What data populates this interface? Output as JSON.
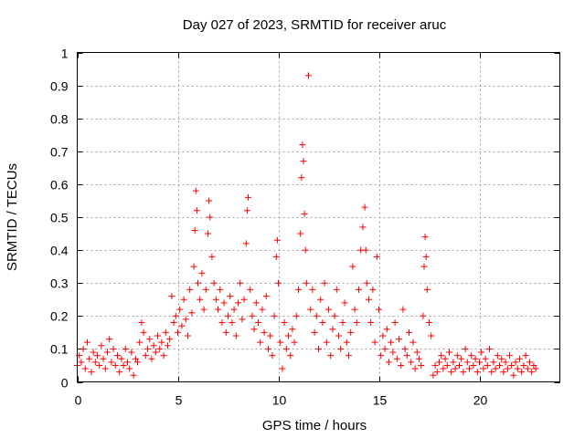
{
  "chart_data": {
    "type": "scatter",
    "title": "Day 027 of 2023, SRMTID for receiver aruc",
    "xlabel": "GPS time / hours",
    "ylabel": "SRMTID / TECUs",
    "xlim": [
      0,
      24
    ],
    "ylim": [
      0,
      1
    ],
    "xticks": [
      0,
      5,
      10,
      15,
      20
    ],
    "xtick_labels": [
      "0",
      "5",
      "10",
      "15",
      "20"
    ],
    "yticks": [
      0,
      0.1,
      0.2,
      0.3,
      0.4,
      0.5,
      0.6,
      0.7,
      0.8,
      0.9,
      1
    ],
    "ytick_labels": [
      "0",
      "0.1",
      "0.2",
      "0.3",
      "0.4",
      "0.5",
      "0.6",
      "0.7",
      "0.8",
      "0.9",
      "1"
    ],
    "grid": true,
    "marker": "+",
    "color": "#ff0000",
    "series": [
      {
        "name": "SRMTID",
        "points": [
          [
            0.0,
            0.05
          ],
          [
            0.1,
            0.08
          ],
          [
            0.2,
            0.06
          ],
          [
            0.3,
            0.1
          ],
          [
            0.4,
            0.04
          ],
          [
            0.5,
            0.12
          ],
          [
            0.6,
            0.07
          ],
          [
            0.7,
            0.03
          ],
          [
            0.8,
            0.09
          ],
          [
            0.9,
            0.06
          ],
          [
            1.0,
            0.08
          ],
          [
            1.1,
            0.05
          ],
          [
            1.2,
            0.11
          ],
          [
            1.3,
            0.07
          ],
          [
            1.4,
            0.04
          ],
          [
            1.5,
            0.09
          ],
          [
            1.6,
            0.13
          ],
          [
            1.7,
            0.06
          ],
          [
            1.8,
            0.1
          ],
          [
            1.9,
            0.05
          ],
          [
            2.0,
            0.08
          ],
          [
            2.1,
            0.03
          ],
          [
            2.2,
            0.07
          ],
          [
            2.3,
            0.05
          ],
          [
            2.4,
            0.1
          ],
          [
            2.5,
            0.06
          ],
          [
            2.6,
            0.04
          ],
          [
            2.7,
            0.09
          ],
          [
            2.8,
            0.02
          ],
          [
            2.9,
            0.07
          ],
          [
            3.0,
            0.06
          ],
          [
            3.1,
            0.12
          ],
          [
            3.2,
            0.18
          ],
          [
            3.3,
            0.15
          ],
          [
            3.4,
            0.08
          ],
          [
            3.5,
            0.1
          ],
          [
            3.6,
            0.13
          ],
          [
            3.7,
            0.07
          ],
          [
            3.8,
            0.11
          ],
          [
            3.9,
            0.09
          ],
          [
            4.0,
            0.14
          ],
          [
            4.1,
            0.1
          ],
          [
            4.2,
            0.12
          ],
          [
            4.3,
            0.08
          ],
          [
            4.4,
            0.15
          ],
          [
            4.5,
            0.11
          ],
          [
            4.6,
            0.13
          ],
          [
            4.7,
            0.26
          ],
          [
            4.8,
            0.18
          ],
          [
            4.9,
            0.2
          ],
          [
            5.0,
            0.15
          ],
          [
            5.1,
            0.22
          ],
          [
            5.2,
            0.17
          ],
          [
            5.3,
            0.25
          ],
          [
            5.4,
            0.19
          ],
          [
            5.5,
            0.14
          ],
          [
            5.6,
            0.28
          ],
          [
            5.7,
            0.21
          ],
          [
            5.8,
            0.35
          ],
          [
            5.85,
            0.46
          ],
          [
            5.9,
            0.58
          ],
          [
            5.95,
            0.52
          ],
          [
            6.0,
            0.3
          ],
          [
            6.1,
            0.25
          ],
          [
            6.2,
            0.33
          ],
          [
            6.3,
            0.22
          ],
          [
            6.4,
            0.28
          ],
          [
            6.5,
            0.45
          ],
          [
            6.55,
            0.55
          ],
          [
            6.6,
            0.5
          ],
          [
            6.7,
            0.38
          ],
          [
            6.8,
            0.3
          ],
          [
            6.9,
            0.25
          ],
          [
            7.0,
            0.22
          ],
          [
            7.1,
            0.28
          ],
          [
            7.2,
            0.18
          ],
          [
            7.3,
            0.24
          ],
          [
            7.4,
            0.15
          ],
          [
            7.5,
            0.2
          ],
          [
            7.6,
            0.26
          ],
          [
            7.7,
            0.18
          ],
          [
            7.8,
            0.22
          ],
          [
            7.9,
            0.14
          ],
          [
            8.0,
            0.24
          ],
          [
            8.1,
            0.3
          ],
          [
            8.2,
            0.19
          ],
          [
            8.3,
            0.25
          ],
          [
            8.4,
            0.42
          ],
          [
            8.45,
            0.52
          ],
          [
            8.5,
            0.56
          ],
          [
            8.6,
            0.28
          ],
          [
            8.7,
            0.2
          ],
          [
            8.8,
            0.16
          ],
          [
            8.9,
            0.24
          ],
          [
            9.0,
            0.18
          ],
          [
            9.1,
            0.12
          ],
          [
            9.2,
            0.22
          ],
          [
            9.3,
            0.15
          ],
          [
            9.4,
            0.26
          ],
          [
            9.5,
            0.1
          ],
          [
            9.6,
            0.14
          ],
          [
            9.7,
            0.08
          ],
          [
            9.8,
            0.2
          ],
          [
            9.9,
            0.38
          ],
          [
            9.95,
            0.43
          ],
          [
            10.0,
            0.3
          ],
          [
            10.1,
            0.12
          ],
          [
            10.2,
            0.04
          ],
          [
            10.3,
            0.18
          ],
          [
            10.4,
            0.1
          ],
          [
            10.5,
            0.14
          ],
          [
            10.6,
            0.08
          ],
          [
            10.7,
            0.16
          ],
          [
            10.8,
            0.12
          ],
          [
            10.9,
            0.2
          ],
          [
            11.0,
            0.28
          ],
          [
            11.1,
            0.45
          ],
          [
            11.15,
            0.62
          ],
          [
            11.2,
            0.72
          ],
          [
            11.25,
            0.67
          ],
          [
            11.3,
            0.51
          ],
          [
            11.35,
            0.4
          ],
          [
            11.4,
            0.3
          ],
          [
            11.5,
            0.93
          ],
          [
            11.6,
            0.22
          ],
          [
            11.7,
            0.28
          ],
          [
            11.8,
            0.15
          ],
          [
            11.9,
            0.2
          ],
          [
            12.0,
            0.1
          ],
          [
            12.1,
            0.25
          ],
          [
            12.2,
            0.18
          ],
          [
            12.3,
            0.3
          ],
          [
            12.4,
            0.12
          ],
          [
            12.5,
            0.22
          ],
          [
            12.6,
            0.08
          ],
          [
            12.7,
            0.16
          ],
          [
            12.8,
            0.2
          ],
          [
            12.9,
            0.28
          ],
          [
            13.0,
            0.14
          ],
          [
            13.1,
            0.1
          ],
          [
            13.2,
            0.18
          ],
          [
            13.3,
            0.24
          ],
          [
            13.4,
            0.12
          ],
          [
            13.5,
            0.08
          ],
          [
            13.6,
            0.15
          ],
          [
            13.7,
            0.35
          ],
          [
            13.8,
            0.22
          ],
          [
            13.9,
            0.18
          ],
          [
            14.0,
            0.28
          ],
          [
            14.1,
            0.4
          ],
          [
            14.2,
            0.47
          ],
          [
            14.3,
            0.53
          ],
          [
            14.35,
            0.4
          ],
          [
            14.4,
            0.3
          ],
          [
            14.5,
            0.25
          ],
          [
            14.6,
            0.18
          ],
          [
            14.7,
            0.28
          ],
          [
            14.8,
            0.12
          ],
          [
            14.9,
            0.38
          ],
          [
            15.0,
            0.22
          ],
          [
            15.1,
            0.08
          ],
          [
            15.2,
            0.14
          ],
          [
            15.3,
            0.1
          ],
          [
            15.4,
            0.16
          ],
          [
            15.5,
            0.06
          ],
          [
            15.6,
            0.12
          ],
          [
            15.7,
            0.09
          ],
          [
            15.8,
            0.18
          ],
          [
            15.9,
            0.07
          ],
          [
            16.0,
            0.13
          ],
          [
            16.1,
            0.05
          ],
          [
            16.2,
            0.22
          ],
          [
            16.3,
            0.1
          ],
          [
            16.4,
            0.08
          ],
          [
            16.5,
            0.15
          ],
          [
            16.6,
            0.06
          ],
          [
            16.7,
            0.12
          ],
          [
            16.8,
            0.04
          ],
          [
            16.9,
            0.09
          ],
          [
            17.0,
            0.07
          ],
          [
            17.1,
            0.05
          ],
          [
            17.2,
            0.2
          ],
          [
            17.25,
            0.35
          ],
          [
            17.3,
            0.44
          ],
          [
            17.35,
            0.38
          ],
          [
            17.4,
            0.28
          ],
          [
            17.5,
            0.18
          ],
          [
            17.6,
            0.14
          ],
          [
            17.7,
            0.02
          ],
          [
            17.8,
            0.05
          ],
          [
            17.9,
            0.03
          ],
          [
            18.0,
            0.06
          ],
          [
            18.1,
            0.08
          ],
          [
            18.2,
            0.04
          ],
          [
            18.3,
            0.07
          ],
          [
            18.4,
            0.05
          ],
          [
            18.5,
            0.09
          ],
          [
            18.6,
            0.03
          ],
          [
            18.7,
            0.06
          ],
          [
            18.8,
            0.04
          ],
          [
            18.9,
            0.08
          ],
          [
            19.0,
            0.05
          ],
          [
            19.1,
            0.07
          ],
          [
            19.2,
            0.03
          ],
          [
            19.3,
            0.1
          ],
          [
            19.4,
            0.06
          ],
          [
            19.5,
            0.04
          ],
          [
            19.6,
            0.08
          ],
          [
            19.7,
            0.05
          ],
          [
            19.8,
            0.07
          ],
          [
            19.9,
            0.03
          ],
          [
            20.0,
            0.06
          ],
          [
            20.1,
            0.09
          ],
          [
            20.2,
            0.04
          ],
          [
            20.3,
            0.07
          ],
          [
            20.4,
            0.05
          ],
          [
            20.5,
            0.1
          ],
          [
            20.6,
            0.03
          ],
          [
            20.7,
            0.06
          ],
          [
            20.8,
            0.04
          ],
          [
            20.9,
            0.08
          ],
          [
            21.0,
            0.05
          ],
          [
            21.1,
            0.07
          ],
          [
            21.2,
            0.03
          ],
          [
            21.3,
            0.06
          ],
          [
            21.4,
            0.04
          ],
          [
            21.5,
            0.08
          ],
          [
            21.6,
            0.05
          ],
          [
            21.7,
            0.02
          ],
          [
            21.8,
            0.06
          ],
          [
            21.9,
            0.04
          ],
          [
            22.0,
            0.07
          ],
          [
            22.1,
            0.03
          ],
          [
            22.2,
            0.05
          ],
          [
            22.3,
            0.08
          ],
          [
            22.4,
            0.04
          ],
          [
            22.5,
            0.06
          ],
          [
            22.6,
            0.03
          ],
          [
            22.7,
            0.05
          ],
          [
            22.8,
            0.04
          ]
        ]
      }
    ]
  }
}
